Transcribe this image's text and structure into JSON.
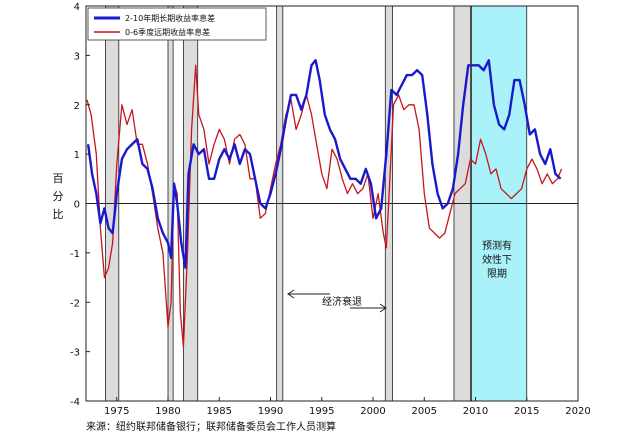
{
  "chart_data": {
    "type": "line",
    "xlim": [
      1972,
      2020
    ],
    "ylim": [
      -4,
      4
    ],
    "x_ticks": [
      1975,
      1980,
      1985,
      1990,
      1995,
      2000,
      2005,
      2010,
      2015,
      2020
    ],
    "y_ticks": [
      -4,
      -3,
      -2,
      -1,
      0,
      1,
      2,
      3,
      4
    ],
    "ylabel_chars": [
      "百",
      "分",
      "比"
    ],
    "legend": {
      "placement": "top-left"
    },
    "series": [
      {
        "name": "2-10年期长期收益率息差",
        "color": "#1a1acc",
        "points": [
          [
            1972.2,
            1.2
          ],
          [
            1972.6,
            0.6
          ],
          [
            1973.0,
            0.2
          ],
          [
            1973.4,
            -0.4
          ],
          [
            1973.8,
            -0.1
          ],
          [
            1974.2,
            -0.5
          ],
          [
            1974.6,
            -0.6
          ],
          [
            1975.0,
            0.2
          ],
          [
            1975.5,
            0.9
          ],
          [
            1976.0,
            1.1
          ],
          [
            1976.5,
            1.2
          ],
          [
            1977.0,
            1.3
          ],
          [
            1977.5,
            0.8
          ],
          [
            1978.0,
            0.7
          ],
          [
            1978.5,
            0.3
          ],
          [
            1979.0,
            -0.3
          ],
          [
            1979.5,
            -0.6
          ],
          [
            1980.0,
            -0.8
          ],
          [
            1980.3,
            -1.1
          ],
          [
            1980.6,
            0.4
          ],
          [
            1980.9,
            0.0
          ],
          [
            1981.3,
            -0.8
          ],
          [
            1981.7,
            -1.3
          ],
          [
            1982.0,
            0.6
          ],
          [
            1982.5,
            1.2
          ],
          [
            1983.0,
            1.0
          ],
          [
            1983.5,
            1.1
          ],
          [
            1984.0,
            0.5
          ],
          [
            1984.5,
            0.5
          ],
          [
            1985.0,
            0.9
          ],
          [
            1985.5,
            1.1
          ],
          [
            1986.0,
            0.9
          ],
          [
            1986.5,
            1.2
          ],
          [
            1987.0,
            0.8
          ],
          [
            1987.5,
            1.1
          ],
          [
            1988.0,
            1.0
          ],
          [
            1988.5,
            0.5
          ],
          [
            1989.0,
            0.0
          ],
          [
            1989.5,
            -0.1
          ],
          [
            1990.0,
            0.2
          ],
          [
            1990.5,
            0.6
          ],
          [
            1991.0,
            1.1
          ],
          [
            1991.5,
            1.7
          ],
          [
            1992.0,
            2.2
          ],
          [
            1992.5,
            2.2
          ],
          [
            1993.0,
            1.9
          ],
          [
            1993.5,
            2.2
          ],
          [
            1994.0,
            2.8
          ],
          [
            1994.4,
            2.9
          ],
          [
            1994.8,
            2.5
          ],
          [
            1995.3,
            1.8
          ],
          [
            1995.8,
            1.5
          ],
          [
            1996.3,
            1.3
          ],
          [
            1996.8,
            0.9
          ],
          [
            1997.3,
            0.7
          ],
          [
            1997.8,
            0.5
          ],
          [
            1998.3,
            0.5
          ],
          [
            1998.8,
            0.4
          ],
          [
            1999.3,
            0.7
          ],
          [
            1999.8,
            0.4
          ],
          [
            2000.3,
            -0.3
          ],
          [
            2000.8,
            -0.1
          ],
          [
            2001.3,
            1.0
          ],
          [
            2001.8,
            2.3
          ],
          [
            2002.3,
            2.2
          ],
          [
            2002.8,
            2.4
          ],
          [
            2003.3,
            2.6
          ],
          [
            2003.8,
            2.6
          ],
          [
            2004.3,
            2.7
          ],
          [
            2004.8,
            2.6
          ],
          [
            2005.3,
            1.8
          ],
          [
            2005.8,
            0.8
          ],
          [
            2006.3,
            0.2
          ],
          [
            2006.8,
            -0.1
          ],
          [
            2007.3,
            0.0
          ],
          [
            2007.8,
            0.3
          ],
          [
            2008.3,
            1.0
          ],
          [
            2008.8,
            2.0
          ],
          [
            2009.3,
            2.8
          ],
          [
            2009.8,
            2.8
          ],
          [
            2010.3,
            2.8
          ],
          [
            2010.8,
            2.7
          ],
          [
            2011.3,
            2.9
          ],
          [
            2011.8,
            2.0
          ],
          [
            2012.3,
            1.6
          ],
          [
            2012.8,
            1.5
          ],
          [
            2013.3,
            1.8
          ],
          [
            2013.8,
            2.5
          ],
          [
            2014.3,
            2.5
          ],
          [
            2014.8,
            2.0
          ],
          [
            2015.3,
            1.4
          ],
          [
            2015.8,
            1.5
          ],
          [
            2016.3,
            1.0
          ],
          [
            2016.8,
            0.8
          ],
          [
            2017.3,
            1.1
          ],
          [
            2017.8,
            0.6
          ],
          [
            2018.3,
            0.5
          ]
        ]
      },
      {
        "name": "0-6季度远期收益率息差",
        "color": "#c8141e",
        "points": [
          [
            1972.1,
            2.1
          ],
          [
            1972.5,
            1.8
          ],
          [
            1973.0,
            1.0
          ],
          [
            1973.4,
            -0.5
          ],
          [
            1973.8,
            -1.5
          ],
          [
            1974.2,
            -1.3
          ],
          [
            1974.6,
            -0.8
          ],
          [
            1975.0,
            0.8
          ],
          [
            1975.5,
            2.0
          ],
          [
            1976.0,
            1.6
          ],
          [
            1976.5,
            1.9
          ],
          [
            1977.0,
            1.2
          ],
          [
            1977.5,
            1.2
          ],
          [
            1978.0,
            0.8
          ],
          [
            1978.5,
            0.2
          ],
          [
            1979.0,
            -0.5
          ],
          [
            1979.5,
            -1.0
          ],
          [
            1980.0,
            -2.5
          ],
          [
            1980.3,
            -2.0
          ],
          [
            1980.6,
            0.4
          ],
          [
            1980.9,
            0.2
          ],
          [
            1981.2,
            -2.2
          ],
          [
            1981.5,
            -2.9
          ],
          [
            1981.9,
            -1.0
          ],
          [
            1982.3,
            1.5
          ],
          [
            1982.7,
            2.8
          ],
          [
            1983.0,
            1.8
          ],
          [
            1983.5,
            1.5
          ],
          [
            1984.0,
            0.8
          ],
          [
            1984.5,
            1.2
          ],
          [
            1985.0,
            1.5
          ],
          [
            1985.5,
            1.3
          ],
          [
            1986.0,
            0.8
          ],
          [
            1986.5,
            1.3
          ],
          [
            1987.0,
            1.4
          ],
          [
            1987.5,
            1.2
          ],
          [
            1988.0,
            0.5
          ],
          [
            1988.5,
            0.5
          ],
          [
            1989.0,
            -0.3
          ],
          [
            1989.5,
            -0.2
          ],
          [
            1990.0,
            0.3
          ],
          [
            1990.5,
            0.8
          ],
          [
            1991.0,
            1.2
          ],
          [
            1991.5,
            1.8
          ],
          [
            1992.0,
            2.1
          ],
          [
            1992.5,
            1.5
          ],
          [
            1993.0,
            1.8
          ],
          [
            1993.5,
            2.2
          ],
          [
            1994.0,
            1.8
          ],
          [
            1994.5,
            1.2
          ],
          [
            1995.0,
            0.6
          ],
          [
            1995.5,
            0.3
          ],
          [
            1996.0,
            1.1
          ],
          [
            1996.5,
            0.9
          ],
          [
            1997.0,
            0.5
          ],
          [
            1997.5,
            0.2
          ],
          [
            1998.0,
            0.4
          ],
          [
            1998.5,
            0.2
          ],
          [
            1999.0,
            0.3
          ],
          [
            1999.5,
            0.6
          ],
          [
            2000.0,
            -0.3
          ],
          [
            2000.5,
            0.2
          ],
          [
            2001.0,
            -0.6
          ],
          [
            2001.3,
            -0.9
          ],
          [
            2001.6,
            0.3
          ],
          [
            2002.0,
            2.0
          ],
          [
            2002.5,
            2.2
          ],
          [
            2003.0,
            1.9
          ],
          [
            2003.5,
            2.0
          ],
          [
            2004.0,
            2.0
          ],
          [
            2004.5,
            1.5
          ],
          [
            2005.0,
            0.2
          ],
          [
            2005.5,
            -0.5
          ],
          [
            2006.0,
            -0.6
          ],
          [
            2006.5,
            -0.7
          ],
          [
            2007.0,
            -0.6
          ],
          [
            2007.5,
            -0.2
          ],
          [
            2008.0,
            0.2
          ],
          [
            2008.5,
            0.3
          ],
          [
            2009.0,
            0.4
          ],
          [
            2009.5,
            0.9
          ],
          [
            2010.0,
            0.8
          ],
          [
            2010.5,
            1.3
          ],
          [
            2011.0,
            1.0
          ],
          [
            2011.5,
            0.6
          ],
          [
            2012.0,
            0.7
          ],
          [
            2012.5,
            0.3
          ],
          [
            2013.0,
            0.2
          ],
          [
            2013.5,
            0.1
          ],
          [
            2014.0,
            0.2
          ],
          [
            2014.5,
            0.3
          ],
          [
            2015.0,
            0.7
          ],
          [
            2015.5,
            0.9
          ],
          [
            2016.0,
            0.7
          ],
          [
            2016.5,
            0.4
          ],
          [
            2017.0,
            0.6
          ],
          [
            2017.5,
            0.4
          ],
          [
            2018.0,
            0.5
          ],
          [
            2018.4,
            0.7
          ]
        ]
      }
    ],
    "recessions": [
      [
        1973.9,
        1975.2
      ],
      [
        1980.0,
        1980.5
      ],
      [
        1981.5,
        1982.9
      ],
      [
        1990.6,
        1991.2
      ],
      [
        2001.2,
        2001.9
      ],
      [
        2007.9,
        2009.5
      ]
    ],
    "highlight": {
      "range": [
        2009.6,
        2015.0
      ],
      "color": "#aaf2fa"
    },
    "annotations": {
      "recession_label": "经济衰退",
      "validity_label": [
        "预测有",
        "效性下",
        "限期"
      ]
    },
    "source": "来源：纽约联邦储备银行；联邦储备委员会工作人员测算"
  }
}
